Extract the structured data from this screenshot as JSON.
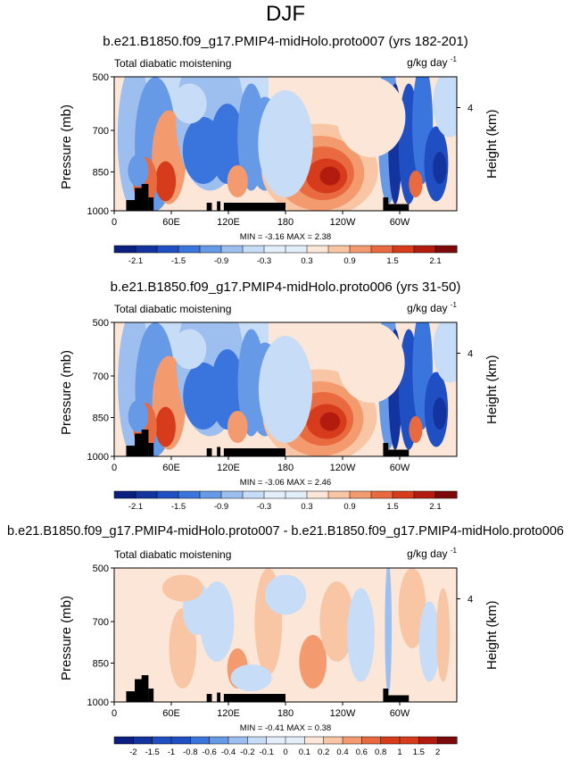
{
  "main_title": "DJF",
  "variable_name": "Total diabatic moistening",
  "units": "g/kg day",
  "units_exponent": "-1",
  "panels": [
    {
      "id": "p1",
      "title": "b.e21.B1850.f09_g17.PMIP4-midHolo.proto007 (yrs 182-201)",
      "min_max": "MIN = -3.16  MAX = 2.38"
    },
    {
      "id": "p2",
      "title": "b.e21.B1850.f09_g17.PMIP4-midHolo.proto006 (yrs 31-50)",
      "min_max": "MIN = -3.06  MAX = 2.46"
    },
    {
      "id": "p3",
      "title": "b.e21.B1850.f09_g17.PMIP4-midHolo.proto007 - b.e21.B1850.f09_g17.PMIP4-midHolo.proto006",
      "min_max": "MIN = -0.41  MAX = 0.38"
    }
  ],
  "axes": {
    "ylabel_left": "Pressure (mb)",
    "ylabel_right": "Height (km)",
    "right_tick": "4"
  },
  "colors": {
    "palette": [
      "#0a1f7e",
      "#13339e",
      "#1f4fc2",
      "#3a75dd",
      "#6699e6",
      "#9cbfef",
      "#c7dcf6",
      "#e3eefb",
      "#fce6d7",
      "#f9c6a5",
      "#f39b6f",
      "#e86a3e",
      "#d63c1c",
      "#b31b0e",
      "#7d0a0a"
    ]
  },
  "chart_data": [
    {
      "type": "heatmap",
      "panel": "p1",
      "title": "b.e21.B1850.f09_g17.PMIP4-midHolo.proto007 (yrs 182-201)",
      "xlabel": "",
      "ylabel": "Pressure (mb)",
      "ylabel_right": "Height (km)",
      "x_ticks": [
        "0",
        "60E",
        "120E",
        "180",
        "120W",
        "60W"
      ],
      "y_ticks": [
        "500",
        "700",
        "850",
        "1000"
      ],
      "y_range_mb": [
        500,
        1000
      ],
      "colorbar_labels": [
        "-2.1",
        "-1.5",
        "-0.9",
        "-0.3",
        "0.3",
        "0.9",
        "1.5",
        "2.1"
      ],
      "min": -3.16,
      "max": 2.38
    },
    {
      "type": "heatmap",
      "panel": "p2",
      "title": "b.e21.B1850.f09_g17.PMIP4-midHolo.proto006 (yrs 31-50)",
      "xlabel": "",
      "ylabel": "Pressure (mb)",
      "ylabel_right": "Height (km)",
      "x_ticks": [
        "0",
        "60E",
        "120E",
        "180",
        "120W",
        "60W"
      ],
      "y_ticks": [
        "500",
        "700",
        "850",
        "1000"
      ],
      "y_range_mb": [
        500,
        1000
      ],
      "colorbar_labels": [
        "-2.1",
        "-1.5",
        "-0.9",
        "-0.3",
        "0.3",
        "0.9",
        "1.5",
        "2.1"
      ],
      "min": -3.06,
      "max": 2.46
    },
    {
      "type": "heatmap",
      "panel": "p3",
      "title": "b.e21.B1850.f09_g17.PMIP4-midHolo.proto007 - b.e21.B1850.f09_g17.PMIP4-midHolo.proto006",
      "xlabel": "",
      "ylabel": "Pressure (mb)",
      "ylabel_right": "Height (km)",
      "x_ticks": [
        "0",
        "60E",
        "120E",
        "180",
        "120W",
        "60W"
      ],
      "y_ticks": [
        "500",
        "700",
        "850",
        "1000"
      ],
      "y_range_mb": [
        500,
        1000
      ],
      "colorbar_labels": [
        "-2",
        "-1.5",
        "-1",
        "-0.8",
        "-0.6",
        "-0.4",
        "-0.2",
        "-0.1",
        "0",
        "0.1",
        "0.2",
        "0.4",
        "0.6",
        "0.8",
        "1",
        "1.5",
        "2"
      ],
      "min": -0.41,
      "max": 0.38
    }
  ]
}
